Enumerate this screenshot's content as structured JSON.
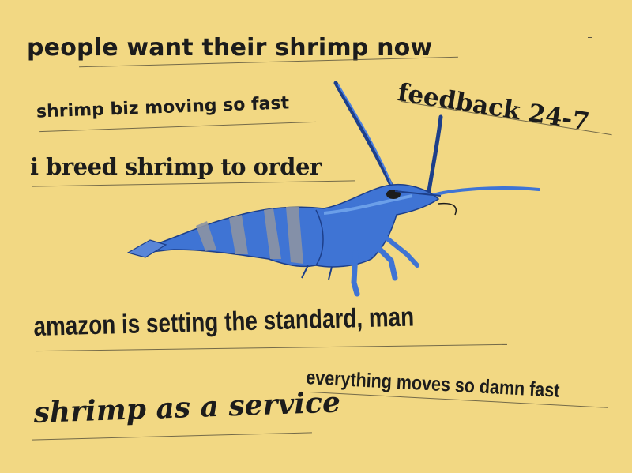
{
  "phrases": {
    "people_want": "people want their shrimp now",
    "biz_fast": "shrimp biz moving so fast",
    "breed_order": "i breed shrimp to order",
    "feedback": "feedback 24-7",
    "amazon": "amazon is setting the standard, man",
    "everything_fast": "everything moves so damn fast",
    "saas": "shrimp as a service"
  },
  "colors": {
    "background": "#f2d883",
    "shrimp_blue": "#3f74d4",
    "shrimp_dark": "#1d3f8a",
    "stripe_gray": "#8c94a4"
  },
  "icons": {
    "illustration": "blue-shrimp-illustration"
  }
}
